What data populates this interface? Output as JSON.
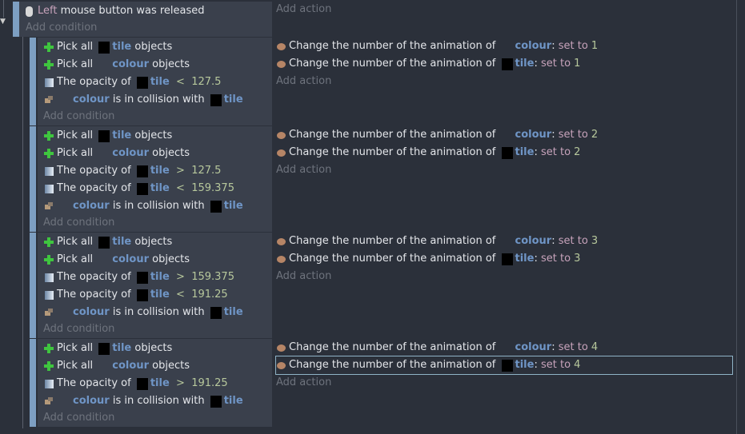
{
  "parent": {
    "conditions": [
      [
        {
          "icon": "mouse"
        },
        {
          "kw": "Left"
        },
        {
          "t": " mouse button was released"
        }
      ]
    ],
    "add_condition": "Add condition",
    "add_action": "Add action"
  },
  "subevents": [
    {
      "conditions": [
        [
          {
            "icon": "plus"
          },
          {
            "t": "Pick all "
          },
          {
            "icon": "blk"
          },
          {
            "obj": "tile"
          },
          {
            "t": " objects"
          }
        ],
        [
          {
            "icon": "plus"
          },
          {
            "t": "Pick all "
          },
          {
            "icon": "gap"
          },
          {
            "obj": "colour"
          },
          {
            "t": " objects"
          }
        ],
        [
          {
            "icon": "op"
          },
          {
            "t": "The opacity of "
          },
          {
            "icon": "blk"
          },
          {
            "obj": "tile"
          },
          {
            "num": "  <  127.5"
          }
        ],
        [
          {
            "icon": "col"
          },
          {
            "icon": "gap"
          },
          {
            "obj": "colour"
          },
          {
            "t": " is in collision with "
          },
          {
            "icon": "blk"
          },
          {
            "obj": "tile"
          }
        ]
      ],
      "actions": [
        [
          {
            "icon": "anim"
          },
          {
            "t": "Change the number of the animation of "
          },
          {
            "icon": "gap"
          },
          {
            "obj": "colour"
          },
          {
            "t": ": "
          },
          {
            "kw": "set to "
          },
          {
            "num": "1"
          }
        ],
        [
          {
            "icon": "anim"
          },
          {
            "t": "Change the number of the animation of "
          },
          {
            "icon": "blk"
          },
          {
            "obj": "tile"
          },
          {
            "t": ": "
          },
          {
            "kw": "set to "
          },
          {
            "num": "1"
          }
        ]
      ]
    },
    {
      "conditions": [
        [
          {
            "icon": "plus"
          },
          {
            "t": "Pick all "
          },
          {
            "icon": "blk"
          },
          {
            "obj": "tile"
          },
          {
            "t": " objects"
          }
        ],
        [
          {
            "icon": "plus"
          },
          {
            "t": "Pick all "
          },
          {
            "icon": "gap"
          },
          {
            "obj": "colour"
          },
          {
            "t": " objects"
          }
        ],
        [
          {
            "icon": "op"
          },
          {
            "t": "The opacity of "
          },
          {
            "icon": "blk"
          },
          {
            "obj": "tile"
          },
          {
            "num": "  >  127.5"
          }
        ],
        [
          {
            "icon": "op"
          },
          {
            "t": "The opacity of "
          },
          {
            "icon": "blk"
          },
          {
            "obj": "tile"
          },
          {
            "num": "  <  159.375"
          }
        ],
        [
          {
            "icon": "col"
          },
          {
            "icon": "gap"
          },
          {
            "obj": "colour"
          },
          {
            "t": " is in collision with "
          },
          {
            "icon": "blk"
          },
          {
            "obj": "tile"
          }
        ]
      ],
      "actions": [
        [
          {
            "icon": "anim"
          },
          {
            "t": "Change the number of the animation of "
          },
          {
            "icon": "gap"
          },
          {
            "obj": "colour"
          },
          {
            "t": ": "
          },
          {
            "kw": "set to "
          },
          {
            "num": "2"
          }
        ],
        [
          {
            "icon": "anim"
          },
          {
            "t": "Change the number of the animation of "
          },
          {
            "icon": "blk"
          },
          {
            "obj": "tile"
          },
          {
            "t": ": "
          },
          {
            "kw": "set to "
          },
          {
            "num": "2"
          }
        ]
      ]
    },
    {
      "conditions": [
        [
          {
            "icon": "plus"
          },
          {
            "t": "Pick all "
          },
          {
            "icon": "blk"
          },
          {
            "obj": "tile"
          },
          {
            "t": " objects"
          }
        ],
        [
          {
            "icon": "plus"
          },
          {
            "t": "Pick all "
          },
          {
            "icon": "gap"
          },
          {
            "obj": "colour"
          },
          {
            "t": " objects"
          }
        ],
        [
          {
            "icon": "op"
          },
          {
            "t": "The opacity of "
          },
          {
            "icon": "blk"
          },
          {
            "obj": "tile"
          },
          {
            "num": "  >  159.375"
          }
        ],
        [
          {
            "icon": "op"
          },
          {
            "t": "The opacity of "
          },
          {
            "icon": "blk"
          },
          {
            "obj": "tile"
          },
          {
            "num": "  <  191.25"
          }
        ],
        [
          {
            "icon": "col"
          },
          {
            "icon": "gap"
          },
          {
            "obj": "colour"
          },
          {
            "t": " is in collision with "
          },
          {
            "icon": "blk"
          },
          {
            "obj": "tile"
          }
        ]
      ],
      "actions": [
        [
          {
            "icon": "anim"
          },
          {
            "t": "Change the number of the animation of "
          },
          {
            "icon": "gap"
          },
          {
            "obj": "colour"
          },
          {
            "t": ": "
          },
          {
            "kw": "set to "
          },
          {
            "num": "3"
          }
        ],
        [
          {
            "icon": "anim"
          },
          {
            "t": "Change the number of the animation of "
          },
          {
            "icon": "blk"
          },
          {
            "obj": "tile"
          },
          {
            "t": ": "
          },
          {
            "kw": "set to "
          },
          {
            "num": "3"
          }
        ]
      ]
    },
    {
      "conditions": [
        [
          {
            "icon": "plus"
          },
          {
            "t": "Pick all "
          },
          {
            "icon": "blk"
          },
          {
            "obj": "tile"
          },
          {
            "t": " objects"
          }
        ],
        [
          {
            "icon": "plus"
          },
          {
            "t": "Pick all "
          },
          {
            "icon": "gap"
          },
          {
            "obj": "colour"
          },
          {
            "t": " objects"
          }
        ],
        [
          {
            "icon": "op"
          },
          {
            "t": "The opacity of "
          },
          {
            "icon": "blk"
          },
          {
            "obj": "tile"
          },
          {
            "num": "  >  191.25"
          }
        ],
        [
          {
            "icon": "col"
          },
          {
            "icon": "gap"
          },
          {
            "obj": "colour"
          },
          {
            "t": " is in collision with "
          },
          {
            "icon": "blk"
          },
          {
            "obj": "tile"
          }
        ]
      ],
      "actions": [
        [
          {
            "icon": "anim"
          },
          {
            "t": "Change the number of the animation of "
          },
          {
            "icon": "gap"
          },
          {
            "obj": "colour"
          },
          {
            "t": ": "
          },
          {
            "kw": "set to "
          },
          {
            "num": "4"
          }
        ],
        [
          {
            "icon": "anim"
          },
          {
            "t": "Change the number of the animation of "
          },
          {
            "icon": "blk"
          },
          {
            "obj": "tile"
          },
          {
            "t": ": "
          },
          {
            "kw": "set to "
          },
          {
            "num": "4"
          }
        ]
      ],
      "selected_action": 1
    }
  ],
  "labels": {
    "add_condition": "Add condition",
    "add_action": "Add action"
  },
  "colors": {
    "bar": "#7d9fc2",
    "object": "#6f95c6",
    "number": "#b7c89c",
    "keyword": "#c7a3bb"
  }
}
